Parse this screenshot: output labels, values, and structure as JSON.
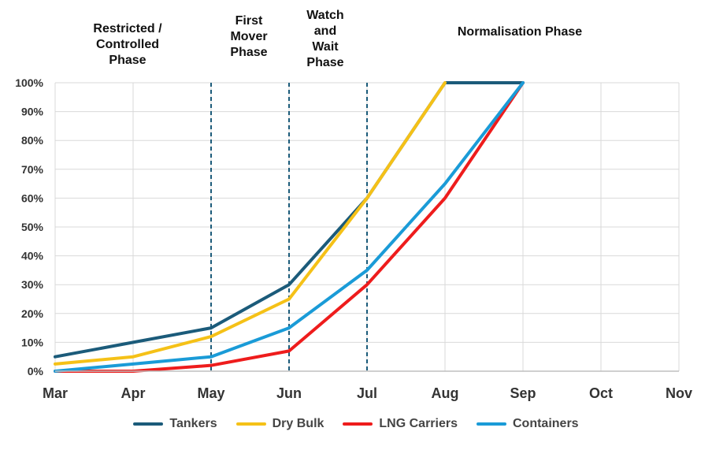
{
  "phases": [
    {
      "label": "Restricted /\nControlled\nPhase"
    },
    {
      "label": "First\nMover\nPhase"
    },
    {
      "label": "Watch\nand\nWait\nPhase"
    },
    {
      "label": "Normalisation Phase"
    }
  ],
  "chart_data": {
    "type": "line",
    "categories": [
      "Mar",
      "Apr",
      "May",
      "Jun",
      "Jul",
      "Aug",
      "Sep",
      "Oct",
      "Nov"
    ],
    "y_ticks": [
      "0%",
      "10%",
      "20%",
      "30%",
      "40%",
      "50%",
      "60%",
      "70%",
      "80%",
      "90%",
      "100%"
    ],
    "ylim": [
      0,
      100
    ],
    "grid": true,
    "legend_position": "bottom",
    "phase_boundaries": [
      "May",
      "Jun",
      "Jul"
    ],
    "series": [
      {
        "name": "Tankers",
        "color": "#1b5b7a",
        "values": [
          5,
          10,
          15,
          30,
          60,
          100,
          100,
          null,
          null
        ]
      },
      {
        "name": "Dry Bulk",
        "color": "#f5c117",
        "values": [
          2.5,
          5,
          12,
          25,
          60,
          100,
          null,
          null,
          null
        ]
      },
      {
        "name": "LNG Carriers",
        "color": "#ee1c1c",
        "values": [
          0,
          0,
          2,
          7,
          30,
          60,
          100,
          null,
          null
        ]
      },
      {
        "name": "Containers",
        "color": "#1a9bd7",
        "values": [
          0,
          2.5,
          5,
          15,
          35,
          65,
          100,
          null,
          null
        ]
      }
    ]
  }
}
